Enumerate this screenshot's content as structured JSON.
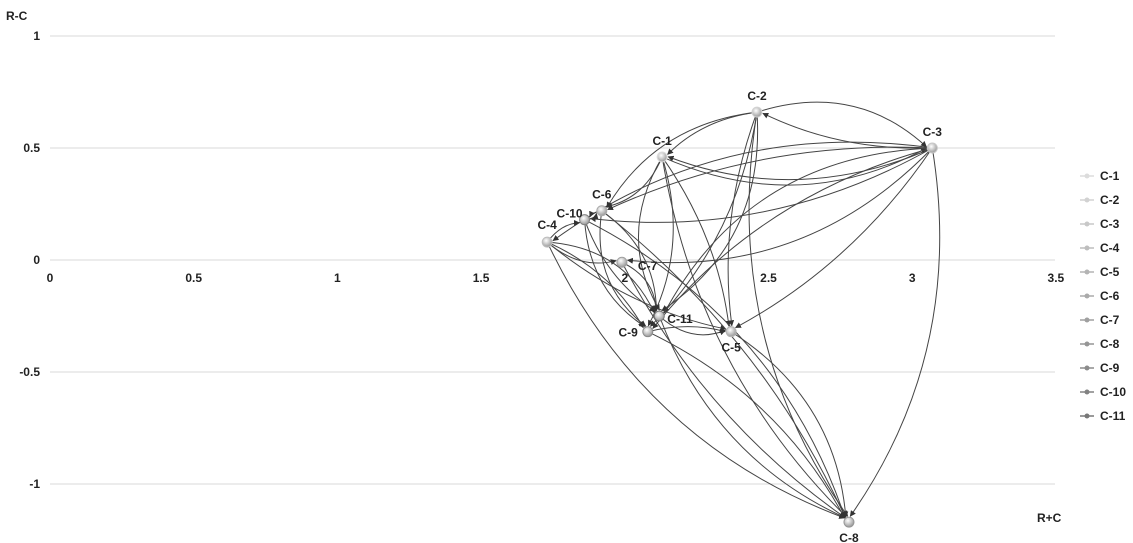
{
  "chart_data": {
    "type": "scatter",
    "xlabel": "R+C",
    "ylabel": "R-C",
    "xlim": [
      0,
      3.5
    ],
    "ylim": [
      -1.25,
      1
    ],
    "xticks": [
      0,
      0.5,
      1,
      1.5,
      2,
      2.5,
      3,
      3.5
    ],
    "xtick_labels": [
      "0",
      "0.5",
      "1",
      "1.5",
      "2",
      "2.5",
      "3",
      "3.5"
    ],
    "yticks": [
      1,
      0.5,
      0,
      -0.5,
      -1
    ],
    "ytick_labels": [
      "1",
      "0.5",
      "0",
      "-0.5",
      "-1"
    ],
    "grid": "horizontal",
    "legend": "right",
    "series": [
      {
        "name": "C-1",
        "x": 2.13,
        "y": 0.46,
        "color": "#dcdcdc"
      },
      {
        "name": "C-2",
        "x": 2.46,
        "y": 0.66,
        "color": "#d2d2d2"
      },
      {
        "name": "C-3",
        "x": 3.07,
        "y": 0.5,
        "color": "#c8c8c8"
      },
      {
        "name": "C-4",
        "x": 1.73,
        "y": 0.08,
        "color": "#bebebe"
      },
      {
        "name": "C-5",
        "x": 2.37,
        "y": -0.32,
        "color": "#b4b4b4"
      },
      {
        "name": "C-6",
        "x": 1.92,
        "y": 0.22,
        "color": "#aaaaaa"
      },
      {
        "name": "C-7",
        "x": 1.99,
        "y": -0.01,
        "color": "#a0a0a0"
      },
      {
        "name": "C-8",
        "x": 2.78,
        "y": -1.17,
        "color": "#969696"
      },
      {
        "name": "C-9",
        "x": 2.08,
        "y": -0.32,
        "color": "#8c8c8c"
      },
      {
        "name": "C-10",
        "x": 1.86,
        "y": 0.18,
        "color": "#828282"
      },
      {
        "name": "C-11",
        "x": 2.12,
        "y": -0.25,
        "color": "#787878"
      }
    ],
    "links": [
      [
        "C-3",
        "C-2"
      ],
      [
        "C-2",
        "C-1"
      ],
      [
        "C-3",
        "C-1"
      ],
      [
        "C-1",
        "C-3"
      ],
      [
        "C-2",
        "C-3"
      ],
      [
        "C-3",
        "C-6"
      ],
      [
        "C-3",
        "C-10"
      ],
      [
        "C-3",
        "C-4"
      ],
      [
        "C-3",
        "C-7"
      ],
      [
        "C-3",
        "C-11"
      ],
      [
        "C-3",
        "C-5"
      ],
      [
        "C-3",
        "C-9"
      ],
      [
        "C-3",
        "C-8"
      ],
      [
        "C-2",
        "C-6"
      ],
      [
        "C-2",
        "C-11"
      ],
      [
        "C-2",
        "C-5"
      ],
      [
        "C-2",
        "C-9"
      ],
      [
        "C-2",
        "C-8"
      ],
      [
        "C-1",
        "C-6"
      ],
      [
        "C-1",
        "C-11"
      ],
      [
        "C-1",
        "C-5"
      ],
      [
        "C-1",
        "C-8"
      ],
      [
        "C-1",
        "C-9"
      ],
      [
        "C-4",
        "C-7"
      ],
      [
        "C-4",
        "C-11"
      ],
      [
        "C-4",
        "C-5"
      ],
      [
        "C-4",
        "C-9"
      ],
      [
        "C-4",
        "C-8"
      ],
      [
        "C-6",
        "C-11"
      ],
      [
        "C-6",
        "C-9"
      ],
      [
        "C-6",
        "C-8"
      ],
      [
        "C-10",
        "C-11"
      ],
      [
        "C-10",
        "C-8"
      ],
      [
        "C-10",
        "C-9"
      ],
      [
        "C-7",
        "C-11"
      ],
      [
        "C-7",
        "C-8"
      ],
      [
        "C-9",
        "C-8"
      ],
      [
        "C-11",
        "C-8"
      ],
      [
        "C-5",
        "C-8"
      ],
      [
        "C-11",
        "C-5"
      ],
      [
        "C-9",
        "C-5"
      ],
      [
        "C-6",
        "C-10"
      ],
      [
        "C-4",
        "C-10"
      ],
      [
        "C-10",
        "C-6"
      ]
    ]
  }
}
